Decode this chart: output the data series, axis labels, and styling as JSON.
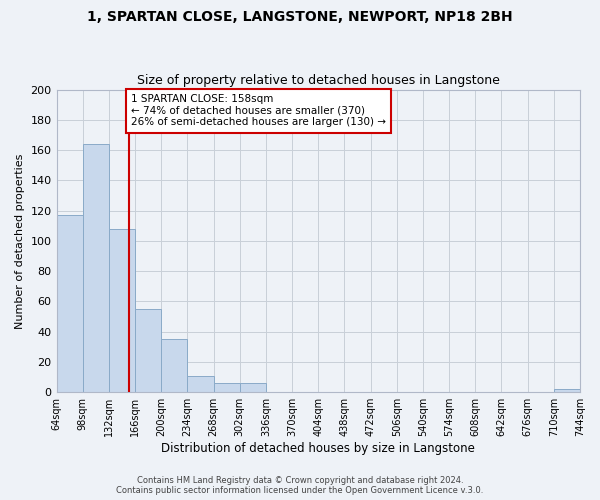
{
  "title": "1, SPARTAN CLOSE, LANGSTONE, NEWPORT, NP18 2BH",
  "subtitle": "Size of property relative to detached houses in Langstone",
  "xlabel": "Distribution of detached houses by size in Langstone",
  "ylabel": "Number of detached properties",
  "bin_edges": [
    64,
    98,
    132,
    166,
    200,
    234,
    268,
    302,
    336,
    370,
    404,
    438,
    472,
    506,
    540,
    574,
    608,
    642,
    676,
    710,
    744
  ],
  "bar_heights": [
    117,
    164,
    108,
    55,
    35,
    11,
    6,
    6,
    0,
    0,
    0,
    0,
    0,
    0,
    0,
    0,
    0,
    0,
    0,
    2
  ],
  "bar_color": "#c8d8ec",
  "bar_edgecolor": "#8aaac8",
  "reference_line_x": 158,
  "reference_line_color": "#cc0000",
  "ylim": [
    0,
    200
  ],
  "yticks": [
    0,
    20,
    40,
    60,
    80,
    100,
    120,
    140,
    160,
    180,
    200
  ],
  "annotation_text": "1 SPARTAN CLOSE: 158sqm\n← 74% of detached houses are smaller (370)\n26% of semi-detached houses are larger (130) →",
  "annotation_box_color": "#ffffff",
  "annotation_box_edgecolor": "#cc0000",
  "footer_line1": "Contains HM Land Registry data © Crown copyright and database right 2024.",
  "footer_line2": "Contains public sector information licensed under the Open Government Licence v.3.0.",
  "background_color": "#eef2f7",
  "plot_background_color": "#eef2f7",
  "grid_color": "#c8cfd8",
  "tick_labels": [
    "64sqm",
    "98sqm",
    "132sqm",
    "166sqm",
    "200sqm",
    "234sqm",
    "268sqm",
    "302sqm",
    "336sqm",
    "370sqm",
    "404sqm",
    "438sqm",
    "472sqm",
    "506sqm",
    "540sqm",
    "574sqm",
    "608sqm",
    "642sqm",
    "676sqm",
    "710sqm",
    "744sqm"
  ]
}
